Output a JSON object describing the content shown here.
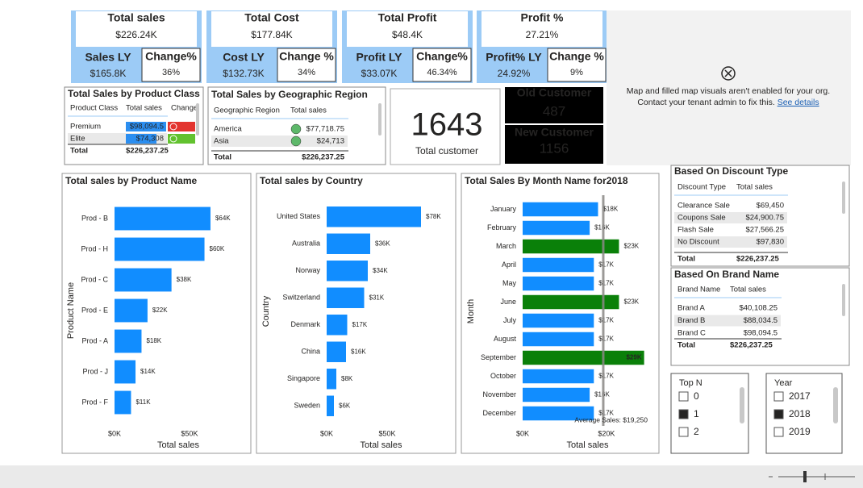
{
  "kpis": [
    {
      "title": "Total sales",
      "value": "$226.24K",
      "ly_label": "Sales LY",
      "ly_value": "$165.8K",
      "change_label": "Change%",
      "change_value": "36%"
    },
    {
      "title": "Total Cost",
      "value": "$177.84K",
      "ly_label": "Cost LY",
      "ly_value": "$132.73K",
      "change_label": "Change %",
      "change_value": "34%"
    },
    {
      "title": "Total Profit",
      "value": "$48.4K",
      "ly_label": "Profit LY",
      "ly_value": "$33.07K",
      "change_label": "Change%",
      "change_value": "46.34%"
    },
    {
      "title": "Profit %",
      "value": "27.21%",
      "ly_label": "Profit% LY",
      "ly_value": "24.92%",
      "change_label": "Change %",
      "change_value": "9%"
    }
  ],
  "map_notice": {
    "line1": "Map and filled map visuals aren't enabled for your org.",
    "line2": "Contact your tenant admin to fix this.",
    "link": "See details"
  },
  "tables": {
    "product_class": {
      "title": "Total Sales by Product Class",
      "columns": [
        "Product Class",
        "Total sales",
        "Change"
      ],
      "rows": [
        [
          "Premium",
          "$98,094.5"
        ],
        [
          "Elite",
          "$74,308"
        ]
      ],
      "total": [
        "Total",
        "$226,237.25"
      ]
    },
    "geo_region": {
      "title": "Total Sales by Geographic Region",
      "columns": [
        "Geographic Region",
        "Total sales"
      ],
      "rows": [
        [
          "America",
          "$77,718.75"
        ],
        [
          "Asia",
          "$24,713"
        ]
      ],
      "total": [
        "Total",
        "$226,237.25"
      ]
    },
    "discount_type": {
      "title": "Based On Discount Type",
      "columns": [
        "Discount Type",
        "Total sales"
      ],
      "rows": [
        [
          "Clearance Sale",
          "$69,450"
        ],
        [
          "Coupons Sale",
          "$24,900.75"
        ],
        [
          "Flash Sale",
          "$27,566.25"
        ],
        [
          "No Discount",
          "$97,830"
        ]
      ],
      "total": [
        "Total",
        "$226,237.25"
      ]
    },
    "brand_name": {
      "title": "Based On Brand Name",
      "columns": [
        "Brand Name",
        "Total sales"
      ],
      "rows": [
        [
          "Brand A",
          "$40,108.25"
        ],
        [
          "Brand B",
          "$88,034.5"
        ],
        [
          "Brand C",
          "$98,094.5"
        ]
      ],
      "total": [
        "Total",
        "$226,237.25"
      ]
    }
  },
  "customers": {
    "total": "1643",
    "total_label": "Total customer",
    "old_label": "Old Customer",
    "old": "487",
    "new_label": "New Customer",
    "new": "1156"
  },
  "slicers": [
    {
      "title": "Top N",
      "options": [
        "0",
        "1",
        "2"
      ],
      "selected": 1
    },
    {
      "title": "Year",
      "options": [
        "2017",
        "2018",
        "2019"
      ],
      "selected": 1
    }
  ],
  "chart_data": [
    {
      "type": "bar",
      "orientation": "horizontal",
      "title": "Total sales by Product Name",
      "categories": [
        "Prod - B",
        "Prod - H",
        "Prod - C",
        "Prod - E",
        "Prod - A",
        "Prod - J",
        "Prod - F"
      ],
      "values": [
        64000,
        60000,
        38000,
        22000,
        18000,
        14000,
        11000
      ],
      "value_labels": [
        "$64K",
        "$60K",
        "$38K",
        "$22K",
        "$18K",
        "$14K",
        "$11K"
      ],
      "color": "#118dff",
      "xlim": [
        0,
        85000
      ],
      "xticks": [
        {
          "value": 0,
          "label": "$0K"
        },
        {
          "value": 50000,
          "label": "$50K"
        }
      ],
      "xlabel": "Total sales",
      "ylabel": "Product Name"
    },
    {
      "type": "bar",
      "orientation": "horizontal",
      "title": "Total sales by Country",
      "categories": [
        "United States",
        "Australia",
        "Norway",
        "Switzerland",
        "Denmark",
        "China",
        "Singapore",
        "Sweden"
      ],
      "values": [
        78000,
        36000,
        34000,
        31000,
        17000,
        16000,
        8000,
        6000
      ],
      "value_labels": [
        "$78K",
        "$36K",
        "$34K",
        "$31K",
        "$17K",
        "$16K",
        "$8K",
        "$6K"
      ],
      "color": "#118dff",
      "xlim": [
        0,
        90000
      ],
      "xticks": [
        {
          "value": 0,
          "label": "$0K"
        },
        {
          "value": 50000,
          "label": "$50K"
        }
      ],
      "xlabel": "Total sales",
      "ylabel": "Country"
    },
    {
      "type": "bar",
      "orientation": "horizontal",
      "title": "Total Sales By Month Name for2018",
      "categories": [
        "January",
        "February",
        "March",
        "April",
        "May",
        "June",
        "July",
        "August",
        "September",
        "October",
        "November",
        "December"
      ],
      "values": [
        18000,
        16000,
        23000,
        17000,
        17000,
        23000,
        17000,
        17000,
        29000,
        17000,
        16000,
        17000
      ],
      "value_labels": [
        "$18K",
        "$16K",
        "$23K",
        "$17K",
        "$17K",
        "$23K",
        "$17K",
        "$17K",
        "$29K",
        "$17K",
        "$16K",
        "$17K"
      ],
      "colors": [
        "#118dff",
        "#118dff",
        "#0a8009",
        "#118dff",
        "#118dff",
        "#0a8009",
        "#118dff",
        "#118dff",
        "#0a8009",
        "#118dff",
        "#118dff",
        "#118dff"
      ],
      "xlim": [
        0,
        31000
      ],
      "xticks": [
        {
          "value": 0,
          "label": "$0K"
        },
        {
          "value": 20000,
          "label": "$20K"
        }
      ],
      "average": {
        "value": 19250,
        "label": "Average Sales: $19,250"
      },
      "xlabel": "Total sales",
      "ylabel": "Month"
    }
  ]
}
